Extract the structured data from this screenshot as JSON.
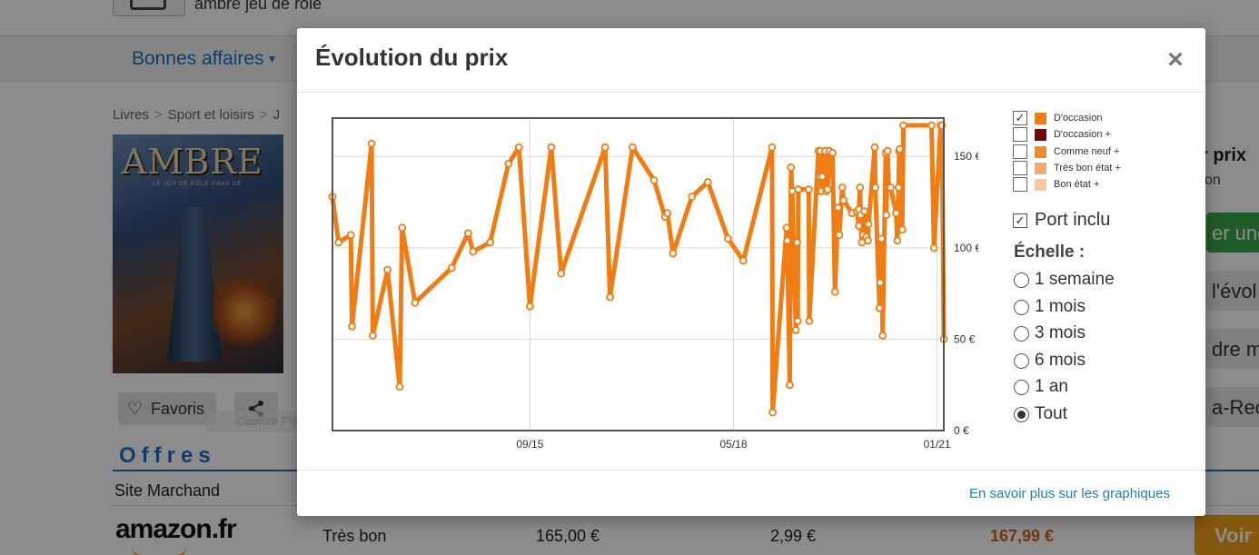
{
  "search": {
    "query": "ambre jeu de rôle"
  },
  "nav": {
    "deals_label": "Bonnes affaires"
  },
  "breadcrumb": [
    "Livres",
    "Sport et loisirs",
    "J"
  ],
  "book": {
    "cover_title": "AMBRE",
    "cover_subtitle": "LE JEU DE RÔLE SANS DÉ"
  },
  "actions": {
    "favorites_label": "Favoris"
  },
  "capture_tooltip": "Capture Plein écran",
  "offers": {
    "title": "Offres",
    "column_merchant": "Site Marchand",
    "rows": [
      {
        "merchant": "amazon.fr",
        "condition": "Très bon",
        "price": "165,00 €",
        "shipping": "2,99 €",
        "total": "167,99 €",
        "button": "Voir"
      }
    ]
  },
  "right_panel": {
    "title_partial": "r prix",
    "sub_partial": "on",
    "btn1_partial": "er une",
    "btn2_partial": "l'évol",
    "btn3_partial": "dre mo",
    "btn4_partial": "a-Rech"
  },
  "modal": {
    "title": "Évolution du prix",
    "close_icon": "close-icon",
    "footer_link": "En savoir plus sur les graphiques",
    "legend": [
      {
        "label": "D'occasion",
        "checked": true,
        "color": "#f07c14"
      },
      {
        "label": "D'occasion +",
        "checked": false,
        "color": "#6e0a0a"
      },
      {
        "label": "Comme neuf +",
        "checked": false,
        "color": "#f08a2a"
      },
      {
        "label": "Très bon état +",
        "checked": false,
        "color": "#f5a970"
      },
      {
        "label": "Bon état +",
        "checked": false,
        "color": "#f8c8a0"
      }
    ],
    "port_label": "Port inclu",
    "port_checked": true,
    "scale_title": "Échelle :",
    "scales": [
      {
        "label": "1 semaine",
        "checked": false
      },
      {
        "label": "1 mois",
        "checked": false
      },
      {
        "label": "3 mois",
        "checked": false
      },
      {
        "label": "6 mois",
        "checked": false
      },
      {
        "label": "1 an",
        "checked": false
      },
      {
        "label": "Tout",
        "checked": true
      }
    ]
  },
  "chart_data": {
    "type": "line",
    "title": "",
    "xlabel": "",
    "ylabel": "",
    "x_tick_labels": [
      "09/15",
      "05/18",
      "01/21"
    ],
    "x_tick_positions": [
      0.323,
      0.656,
      0.989
    ],
    "y_tick_labels": [
      "0 €",
      "50 €",
      "100 €",
      "150 €"
    ],
    "y_tick_values": [
      0,
      50,
      100,
      150
    ],
    "ylim": [
      0,
      171
    ],
    "grid": true,
    "series": [
      {
        "name": "D'occasion",
        "color": "#f07c14",
        "x": [
          0.0,
          0.01,
          0.03,
          0.032,
          0.064,
          0.066,
          0.09,
          0.11,
          0.114,
          0.135,
          0.195,
          0.222,
          0.23,
          0.258,
          0.288,
          0.305,
          0.323,
          0.358,
          0.374,
          0.446,
          0.454,
          0.491,
          0.526,
          0.544,
          0.548,
          0.557,
          0.588,
          0.614,
          0.647,
          0.672,
          0.719,
          0.72,
          0.743,
          0.744,
          0.748,
          0.75,
          0.752,
          0.758,
          0.76,
          0.761,
          0.762,
          0.779,
          0.78,
          0.795,
          0.797,
          0.798,
          0.8,
          0.801,
          0.806,
          0.808,
          0.81,
          0.813,
          0.818,
          0.822,
          0.827,
          0.829,
          0.834,
          0.836,
          0.85,
          0.858,
          0.861,
          0.861,
          0.863,
          0.864,
          0.866,
          0.868,
          0.87,
          0.873,
          0.876,
          0.877,
          0.887,
          0.888,
          0.895,
          0.896,
          0.898,
          0.9,
          0.905,
          0.906,
          0.908,
          0.91,
          0.913,
          0.922,
          0.924,
          0.926,
          0.927,
          0.928,
          0.932,
          0.934,
          0.98,
          0.984,
          0.995,
          0.997,
          1.0
        ],
        "y": [
          128,
          103,
          107,
          57,
          157,
          52,
          88,
          24,
          111,
          70,
          89,
          108,
          98,
          103,
          146,
          155,
          68,
          155,
          86,
          155,
          73,
          155,
          137,
          117,
          119,
          97,
          128,
          136,
          105,
          93,
          155,
          10,
          111,
          104,
          25,
          144,
          131,
          55,
          103,
          60,
          132,
          132,
          60,
          153,
          139,
          153,
          131,
          139,
          153,
          131,
          132,
          153,
          152,
          76,
          122,
          107,
          133,
          126,
          119,
          120,
          112,
          121,
          133,
          118,
          103,
          107,
          120,
          106,
          104,
          113,
          155,
          133,
          67,
          81,
          105,
          52,
          152,
          118,
          153,
          133,
          133,
          119,
          104,
          133,
          153,
          154,
          110,
          167,
          167,
          100,
          167,
          167,
          50
        ]
      }
    ]
  }
}
